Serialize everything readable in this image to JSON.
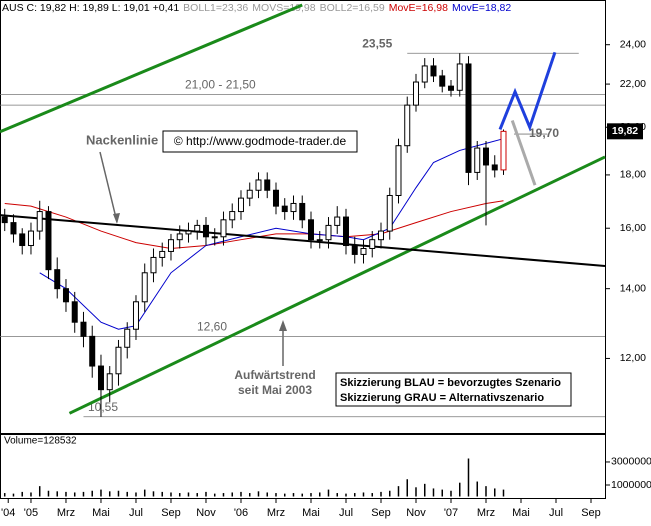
{
  "chart_data": {
    "type": "candlestick",
    "header": [
      {
        "text": "AUS C: 19,82 H: 19,89 L: 19,01 +0,41",
        "color": "#000000"
      },
      {
        "text": "BOLL1=23,36",
        "color": "#999999"
      },
      {
        "text": "MOVS=19,98",
        "color": "#999999"
      },
      {
        "text": "BOLL2=16,59",
        "color": "#999999"
      },
      {
        "text": "MovE=16,98",
        "color": "#cc0000"
      },
      {
        "text": "MovE=18,82",
        "color": "#0000cc"
      }
    ],
    "log_scale": true,
    "xlim": [
      -1.77,
      32.8
    ],
    "xticks": [
      {
        "value": -1.3,
        "label": "'04"
      },
      {
        "value": 0,
        "label": "'05"
      },
      {
        "value": 2,
        "label": "Mrz"
      },
      {
        "value": 4,
        "label": "Mai"
      },
      {
        "value": 6,
        "label": "Jul"
      },
      {
        "value": 8,
        "label": "Sep"
      },
      {
        "value": 10,
        "label": "Nov"
      },
      {
        "value": 12,
        "label": "'06"
      },
      {
        "value": 14,
        "label": "Mrz"
      },
      {
        "value": 16,
        "label": "Mai"
      },
      {
        "value": 18,
        "label": "Jul"
      },
      {
        "value": 20,
        "label": "Sep"
      },
      {
        "value": 22,
        "label": "Nov"
      },
      {
        "value": 24,
        "label": "'07"
      },
      {
        "value": 26,
        "label": "Mrz"
      },
      {
        "value": 28,
        "label": "Mai"
      },
      {
        "value": 30,
        "label": "Jul"
      },
      {
        "value": 32,
        "label": "Sep"
      }
    ],
    "ylim": [
      10.2,
      26.2
    ],
    "yticks": [
      {
        "value": 12,
        "label": "12,00"
      },
      {
        "value": 14,
        "label": "14,00"
      },
      {
        "value": 16,
        "label": "16,00"
      },
      {
        "value": 18,
        "label": "18,00"
      },
      {
        "value": 20,
        "label": "20,00"
      },
      {
        "value": 22,
        "label": "22,00"
      },
      {
        "value": 24,
        "label": "24,00"
      }
    ],
    "last_price": {
      "value": 19.82,
      "label": "19,82"
    },
    "x": [
      -1.5,
      -1,
      -0.5,
      0,
      0.5,
      1,
      1.5,
      2,
      2.5,
      3,
      3.5,
      4,
      4.5,
      5,
      5.5,
      6,
      6.5,
      7,
      7.5,
      8,
      8.5,
      9,
      9.5,
      10,
      10.5,
      11,
      11.5,
      12,
      12.5,
      13,
      13.5,
      14,
      14.5,
      15,
      15.5,
      16,
      16.5,
      17,
      17.5,
      18,
      18.5,
      19,
      19.5,
      20,
      20.5,
      21,
      21.5,
      22,
      22.5,
      23,
      23.5,
      24,
      24.5,
      25,
      25.5,
      26,
      26.5,
      27
    ],
    "open": [
      16.4,
      16.2,
      15.8,
      15.4,
      15.9,
      16.6,
      14.6,
      14.0,
      13.6,
      13.0,
      12.6,
      11.8,
      11.2,
      11.6,
      12.3,
      12.8,
      13.6,
      14.5,
      15.0,
      15.2,
      15.6,
      15.8,
      15.9,
      16.1,
      15.7,
      15.7,
      16.3,
      16.6,
      17.1,
      17.4,
      17.8,
      17.4,
      16.8,
      16.6,
      16.9,
      16.3,
      15.6,
      15.6,
      16.1,
      16.4,
      15.4,
      15.1,
      15.3,
      15.6,
      15.9,
      17.2,
      19.2,
      21.0,
      22.1,
      22.9,
      22.4,
      21.9,
      21.7,
      23.0,
      18.1,
      19.1,
      18.4,
      18.2
    ],
    "high": [
      16.7,
      16.5,
      16.0,
      16.2,
      17.0,
      16.8,
      15.0,
      14.3,
      13.9,
      13.3,
      12.9,
      12.1,
      11.8,
      12.5,
      13.0,
      13.8,
      14.8,
      15.3,
      15.5,
      15.8,
      16.1,
      16.2,
      16.3,
      16.4,
      16.0,
      16.6,
      16.9,
      17.4,
      17.7,
      18.1,
      18.1,
      17.7,
      17.1,
      17.2,
      17.2,
      16.6,
      15.9,
      16.4,
      16.8,
      16.7,
      15.7,
      15.6,
      15.9,
      16.2,
      17.5,
      19.5,
      21.4,
      22.5,
      23.3,
      23.3,
      22.7,
      22.2,
      23.55,
      23.4,
      19.4,
      19.4,
      18.8,
      19.9
    ],
    "low": [
      15.9,
      15.5,
      15.1,
      15.1,
      15.6,
      14.3,
      13.7,
      13.3,
      12.7,
      12.3,
      11.5,
      10.55,
      10.9,
      11.3,
      12.0,
      12.5,
      13.3,
      14.2,
      14.7,
      14.9,
      15.3,
      15.5,
      15.6,
      15.4,
      15.4,
      15.4,
      16.0,
      16.3,
      16.8,
      17.1,
      17.1,
      16.5,
      16.3,
      16.3,
      16.0,
      15.3,
      15.3,
      15.3,
      15.8,
      15.1,
      14.8,
      14.8,
      15.0,
      15.3,
      15.6,
      16.9,
      18.9,
      20.7,
      21.8,
      22.1,
      21.6,
      21.4,
      21.4,
      17.6,
      17.8,
      16.1,
      17.9,
      18.0
    ],
    "close": [
      16.2,
      15.8,
      15.4,
      15.9,
      16.6,
      14.6,
      14.0,
      13.6,
      13.0,
      12.6,
      11.8,
      11.2,
      11.6,
      12.3,
      12.8,
      13.6,
      14.5,
      15.0,
      15.2,
      15.6,
      15.8,
      15.9,
      16.1,
      15.7,
      15.7,
      16.3,
      16.6,
      17.1,
      17.4,
      17.8,
      17.4,
      16.8,
      16.6,
      16.9,
      16.3,
      15.6,
      15.6,
      16.1,
      16.4,
      15.4,
      15.1,
      15.3,
      15.6,
      15.9,
      17.2,
      19.2,
      21.0,
      22.1,
      22.9,
      22.4,
      21.9,
      21.7,
      23.0,
      18.1,
      19.1,
      18.4,
      18.2,
      19.82
    ],
    "series": [
      {
        "color": "#cc0000",
        "x": [
          -1.5,
          0,
          2,
          4,
          6,
          8,
          10,
          12,
          14,
          16,
          18,
          20,
          22,
          24,
          26,
          27
        ],
        "values": [
          16.9,
          16.8,
          16.4,
          15.9,
          15.5,
          15.3,
          15.4,
          15.6,
          15.8,
          15.8,
          15.7,
          15.8,
          16.2,
          16.6,
          16.9,
          17.0
        ]
      },
      {
        "color": "#0000cc",
        "x": [
          0.5,
          2,
          4,
          5,
          6,
          8,
          10,
          12,
          14,
          16,
          18,
          19,
          20.5,
          22,
          23,
          24.5,
          26,
          27
        ],
        "values": [
          14.5,
          14.0,
          13.0,
          12.8,
          12.9,
          14.5,
          15.4,
          15.7,
          16.0,
          15.8,
          15.7,
          15.6,
          16.0,
          17.5,
          18.5,
          19.0,
          19.3,
          19.5
        ]
      }
    ],
    "trendlines": [
      {
        "color": "#1a8a1a",
        "x": [
          -1.77,
          15.5
        ],
        "values": [
          19.8,
          26.2
        ]
      },
      {
        "color": "#1a8a1a",
        "x": [
          2.2,
          32.8
        ],
        "values": [
          10.63,
          18.73
        ]
      },
      {
        "color": "#000000",
        "x": [
          -1.77,
          32.8
        ],
        "values": [
          16.47,
          14.72
        ]
      },
      {
        "color": "#1f3fdd",
        "x": [
          26.8,
          27.66,
          28.5,
          29.94
        ],
        "values": [
          19.9,
          21.63,
          20.0,
          23.6
        ]
      },
      {
        "color": "#aaaaaa",
        "x": [
          27.5,
          28.8
        ],
        "values": [
          20.3,
          17.6
        ]
      }
    ],
    "levels": [
      {
        "value": 23.55,
        "label": "23,55",
        "from": 21.5,
        "to": 31.3
      },
      {
        "value": 21.5,
        "label": "21,00 - 21,50",
        "from": -1.77,
        "to": 32.8
      },
      {
        "value": 21.0,
        "from": -1.77,
        "to": 32.8
      },
      {
        "value": 19.7,
        "label": "19,70",
        "from": 27.6,
        "to": 29.5
      },
      {
        "value": 12.6,
        "label": "12,60",
        "from": -1.77,
        "to": 32.8
      },
      {
        "value": 10.55,
        "label": "10,55",
        "from": 3.0,
        "to": 32.8
      }
    ],
    "annotations": {
      "neckline": "Nackenlinie",
      "copyright": "© http://www.godmode-trader.de",
      "trend1": "Aufwärtstrend",
      "trend2": "seit Mai 2003",
      "legend1": "Skizzierung BLAU = bevorzugtes Szenario",
      "legend2": "Skizzierung GRAU = Alternativszenario"
    },
    "volume": {
      "label": "Volume=128532",
      "ylim": [
        0,
        4300000
      ],
      "yticks": [
        1000000,
        3000000
      ],
      "values": [
        300000,
        250000,
        400000,
        350000,
        900000,
        500000,
        450000,
        400000,
        350000,
        400000,
        500000,
        600000,
        450000,
        500000,
        400000,
        350000,
        600000,
        450000,
        400000,
        350000,
        300000,
        350000,
        300000,
        400000,
        250000,
        300000,
        350000,
        400000,
        300000,
        450000,
        350000,
        300000,
        250000,
        300000,
        250000,
        300000,
        350000,
        600000,
        300000,
        250000,
        300000,
        350000,
        300000,
        400000,
        500000,
        900000,
        1500000,
        800000,
        1100000,
        700000,
        600000,
        500000,
        1200000,
        3300000,
        1300000,
        900000,
        700000,
        600000
      ]
    }
  }
}
